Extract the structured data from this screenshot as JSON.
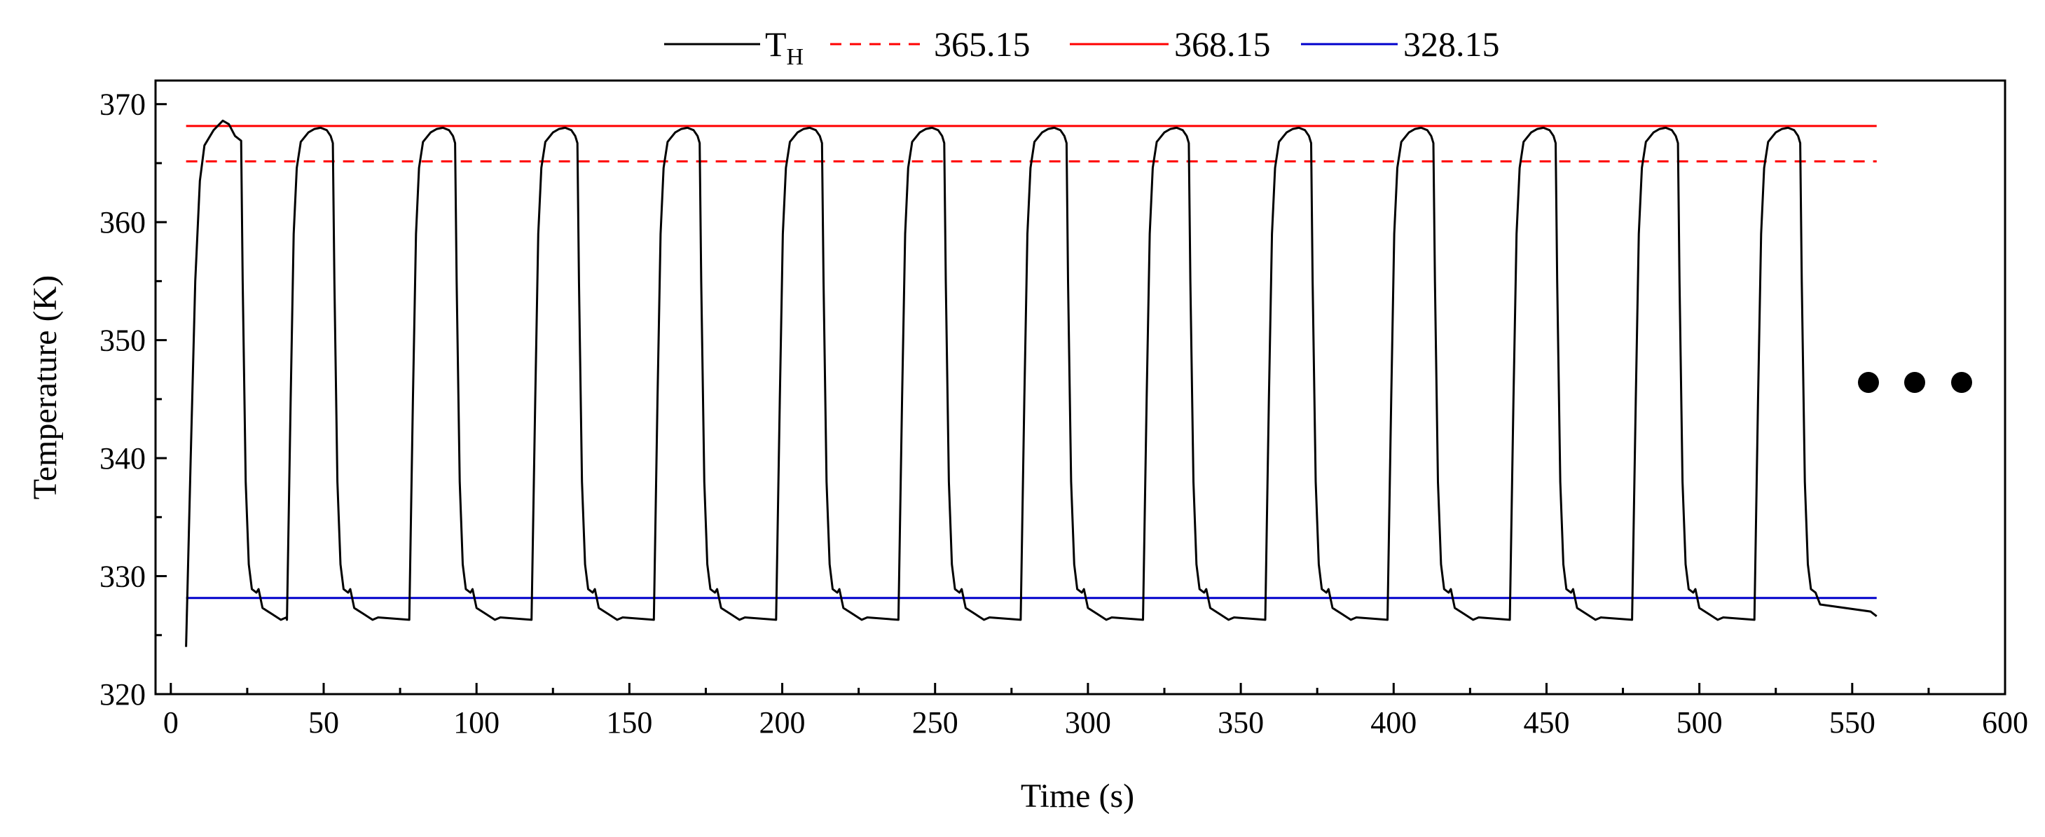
{
  "chart_data": {
    "type": "line",
    "xlabel": "Time (s)",
    "ylabel": "Temperature (K)",
    "xlim": [
      -5,
      600
    ],
    "ylim": [
      320,
      372
    ],
    "x_ticks": [
      0,
      50,
      100,
      150,
      200,
      250,
      300,
      350,
      400,
      450,
      500,
      550,
      600
    ],
    "y_ticks": [
      320,
      330,
      340,
      350,
      360,
      370
    ],
    "grid": false,
    "legend_position": "top-center",
    "continuation_marker": "three dots to the right indicating the cycles continue",
    "series": [
      {
        "name": "T",
        "subscript": "H",
        "color": "#000000",
        "style": "solid",
        "x_range": [
          5,
          558
        ],
        "cycle_period_s": 40,
        "peak_K": 368.0,
        "min_K": 326.3,
        "shoulder_K": 328.9,
        "cycles": 14,
        "start_K": 324
      },
      {
        "name": "365.15",
        "value": 365.15,
        "color": "#ff0000",
        "style": "dashed",
        "x_range": [
          5,
          558
        ]
      },
      {
        "name": "368.15",
        "value": 368.15,
        "color": "#ff0000",
        "style": "solid",
        "x_range": [
          5,
          558
        ]
      },
      {
        "name": "328.15",
        "value": 328.15,
        "color": "#0000cc",
        "style": "solid",
        "x_range": [
          5,
          558
        ]
      }
    ]
  }
}
